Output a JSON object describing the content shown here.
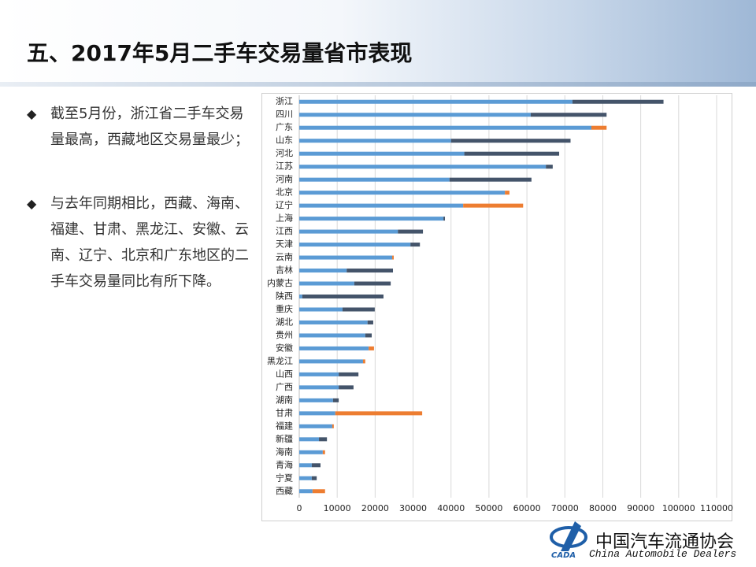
{
  "header": {
    "title": "五、2017年5月二手车交易量省市表现"
  },
  "bullets": [
    "截至5月份，浙江省二手车交易量最高，西藏地区交易量最少；",
    "与去年同期相比，西藏、海南、福建、甘肃、黑龙江、安徽、云南、辽宁、北京和广东地区的二手车交易量同比有所下降。"
  ],
  "footer": {
    "org_cn": "中国汽车流通协会",
    "org_en": "China  Automobile Dealers",
    "logo_text": "CADA"
  },
  "chart_data": {
    "type": "bar",
    "orientation": "horizontal",
    "stacked": true,
    "grid": true,
    "categories": [
      "浙江",
      "四川",
      "广东",
      "山东",
      "河北",
      "江苏",
      "河南",
      "北京",
      "辽宁",
      "上海",
      "江西",
      "天津",
      "云南",
      "吉林",
      "内蒙古",
      "陕西",
      "重庆",
      "湖北",
      "贵州",
      "安徽",
      "黑龙江",
      "山西",
      "广西",
      "湖南",
      "甘肃",
      "福建",
      "新疆",
      "海南",
      "青海",
      "宁夏",
      "西藏"
    ],
    "series": [
      {
        "color": "#5b9bd5",
        "values": [
          72000,
          61000,
          77000,
          40000,
          43500,
          65000,
          39600,
          54200,
          43200,
          38000,
          26000,
          29300,
          24500,
          12500,
          14500,
          800,
          11400,
          18000,
          17400,
          18300,
          16800,
          10400,
          10400,
          8900,
          9500,
          8700,
          5200,
          6200,
          3300,
          3300,
          3500
        ]
      },
      {
        "color": "#44546a",
        "values": [
          24000,
          20000,
          0,
          31500,
          25000,
          1800,
          21600,
          0,
          0,
          400,
          6600,
          2500,
          0,
          12200,
          9600,
          21400,
          8500,
          1500,
          1700,
          0,
          0,
          5200,
          3900,
          1500,
          0,
          0,
          2100,
          0,
          2300,
          1300,
          0
        ]
      },
      {
        "color": "#ed7d31",
        "values": [
          0,
          0,
          4000,
          0,
          0,
          0,
          0,
          1200,
          15800,
          0,
          0,
          0,
          400,
          0,
          0,
          0,
          0,
          0,
          0,
          1400,
          600,
          0,
          0,
          0,
          22900,
          400,
          0,
          600,
          0,
          0,
          3300
        ]
      }
    ],
    "xlim": [
      0,
      110000
    ],
    "xticks": [
      0,
      10000,
      20000,
      30000,
      40000,
      50000,
      60000,
      70000,
      80000,
      90000,
      100000,
      110000
    ]
  }
}
